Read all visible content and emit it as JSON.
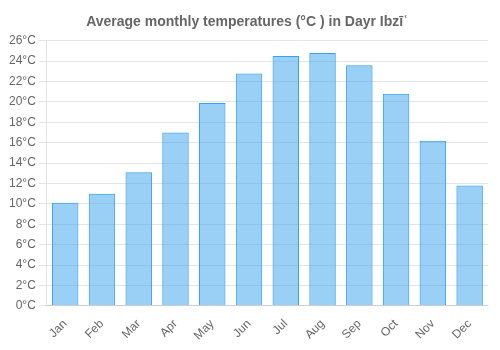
{
  "chart_data": {
    "type": "bar",
    "title": "Average monthly temperatures (°C ) in Dayr Ibzīʿ",
    "categories": [
      "Jan",
      "Feb",
      "Mar",
      "Apr",
      "May",
      "Jun",
      "Jul",
      "Aug",
      "Sep",
      "Oct",
      "Nov",
      "Dec"
    ],
    "values": [
      10.1,
      11.0,
      13.1,
      17.0,
      19.9,
      22.8,
      24.5,
      24.8,
      23.6,
      20.8,
      16.2,
      11.8
    ],
    "ylim": [
      0,
      26
    ],
    "yticks": [
      {
        "value": 0,
        "label": "0°C"
      },
      {
        "value": 2,
        "label": "2°C"
      },
      {
        "value": 4,
        "label": "4°C"
      },
      {
        "value": 6,
        "label": "6°C"
      },
      {
        "value": 8,
        "label": "8°C"
      },
      {
        "value": 10,
        "label": "10°C"
      },
      {
        "value": 12,
        "label": "12°C"
      },
      {
        "value": 14,
        "label": "14°C"
      },
      {
        "value": 16,
        "label": "16°C"
      },
      {
        "value": 18,
        "label": "18°C"
      },
      {
        "value": 20,
        "label": "20°C"
      },
      {
        "value": 22,
        "label": "22°C"
      },
      {
        "value": 24,
        "label": "24°C"
      },
      {
        "value": 26,
        "label": "26°C"
      }
    ],
    "grid": true
  }
}
